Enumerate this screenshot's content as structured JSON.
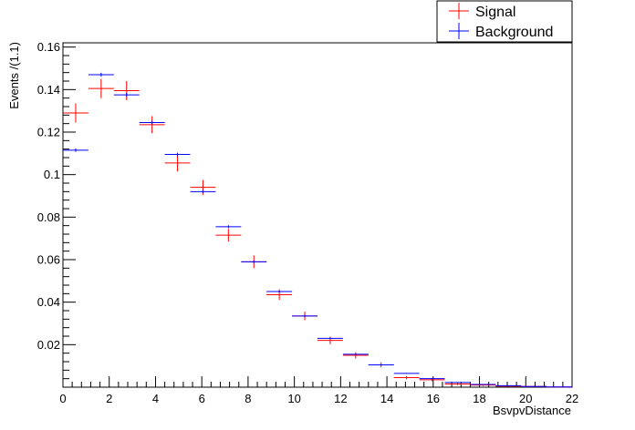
{
  "chart_data": {
    "type": "scatter",
    "title": "",
    "xlabel": "BsvpvDistance",
    "ylabel": "Events /(1.1)",
    "xlim": [
      0,
      22
    ],
    "ylim": [
      0,
      0.162
    ],
    "bin_width": 1.1,
    "x_ticks": [
      0,
      2,
      4,
      6,
      8,
      10,
      12,
      14,
      16,
      18,
      20,
      22
    ],
    "x_tick_labels": [
      "0",
      "2",
      "4",
      "6",
      "8",
      "10",
      "12",
      "14",
      "16",
      "18",
      "20",
      "22"
    ],
    "y_ticks": [
      0.02,
      0.04,
      0.06,
      0.08,
      0.1,
      0.12,
      0.14,
      0.16
    ],
    "y_tick_labels": [
      "0.02",
      "0.04",
      "0.06",
      "0.08",
      "0.1",
      "0.12",
      "0.14",
      "0.16"
    ],
    "legend_position": "top-right",
    "series": [
      {
        "name": "Signal",
        "color": "#ff0000",
        "x": [
          0.55,
          1.65,
          2.75,
          3.85,
          4.95,
          6.05,
          7.15,
          8.25,
          9.35,
          10.45,
          11.55,
          12.65,
          13.75,
          14.85,
          15.95,
          17.05,
          18.15,
          19.25,
          20.35,
          21.45
        ],
        "values": [
          0.129,
          0.1405,
          0.1395,
          0.1235,
          0.1055,
          0.094,
          0.0715,
          0.059,
          0.0435,
          0.0335,
          0.022,
          0.015,
          0.0105,
          0.0045,
          0.0035,
          0.0015,
          0.001,
          0.0005,
          0.0003,
          0.0001
        ],
        "errors": [
          0.0045,
          0.0045,
          0.0045,
          0.004,
          0.004,
          0.0035,
          0.003,
          0.003,
          0.0025,
          0.002,
          0.0018,
          0.0015,
          0.0012,
          0.0008,
          0.0007,
          0.0005,
          0.0004,
          0.0003,
          0.0002,
          0.0001
        ]
      },
      {
        "name": "Background",
        "color": "#0000ff",
        "x": [
          0.55,
          1.65,
          2.75,
          3.85,
          4.95,
          6.05,
          7.15,
          8.25,
          9.35,
          10.45,
          11.55,
          12.65,
          13.75,
          14.85,
          15.95,
          17.05,
          18.15,
          19.25,
          20.35,
          21.45
        ],
        "values": [
          0.1115,
          0.147,
          0.1375,
          0.1245,
          0.1095,
          0.092,
          0.0755,
          0.059,
          0.045,
          0.0335,
          0.023,
          0.0155,
          0.0105,
          0.0065,
          0.004,
          0.0022,
          0.0013,
          0.0007,
          0.0003,
          0.0001
        ],
        "errors": [
          0.0008,
          0.0009,
          0.0009,
          0.0008,
          0.0008,
          0.0007,
          0.0007,
          0.0006,
          0.0005,
          0.0005,
          0.0004,
          0.0003,
          0.0003,
          0.0002,
          0.0002,
          0.0001,
          0.0001,
          0.0001,
          0.0001,
          0.0001
        ]
      }
    ]
  }
}
